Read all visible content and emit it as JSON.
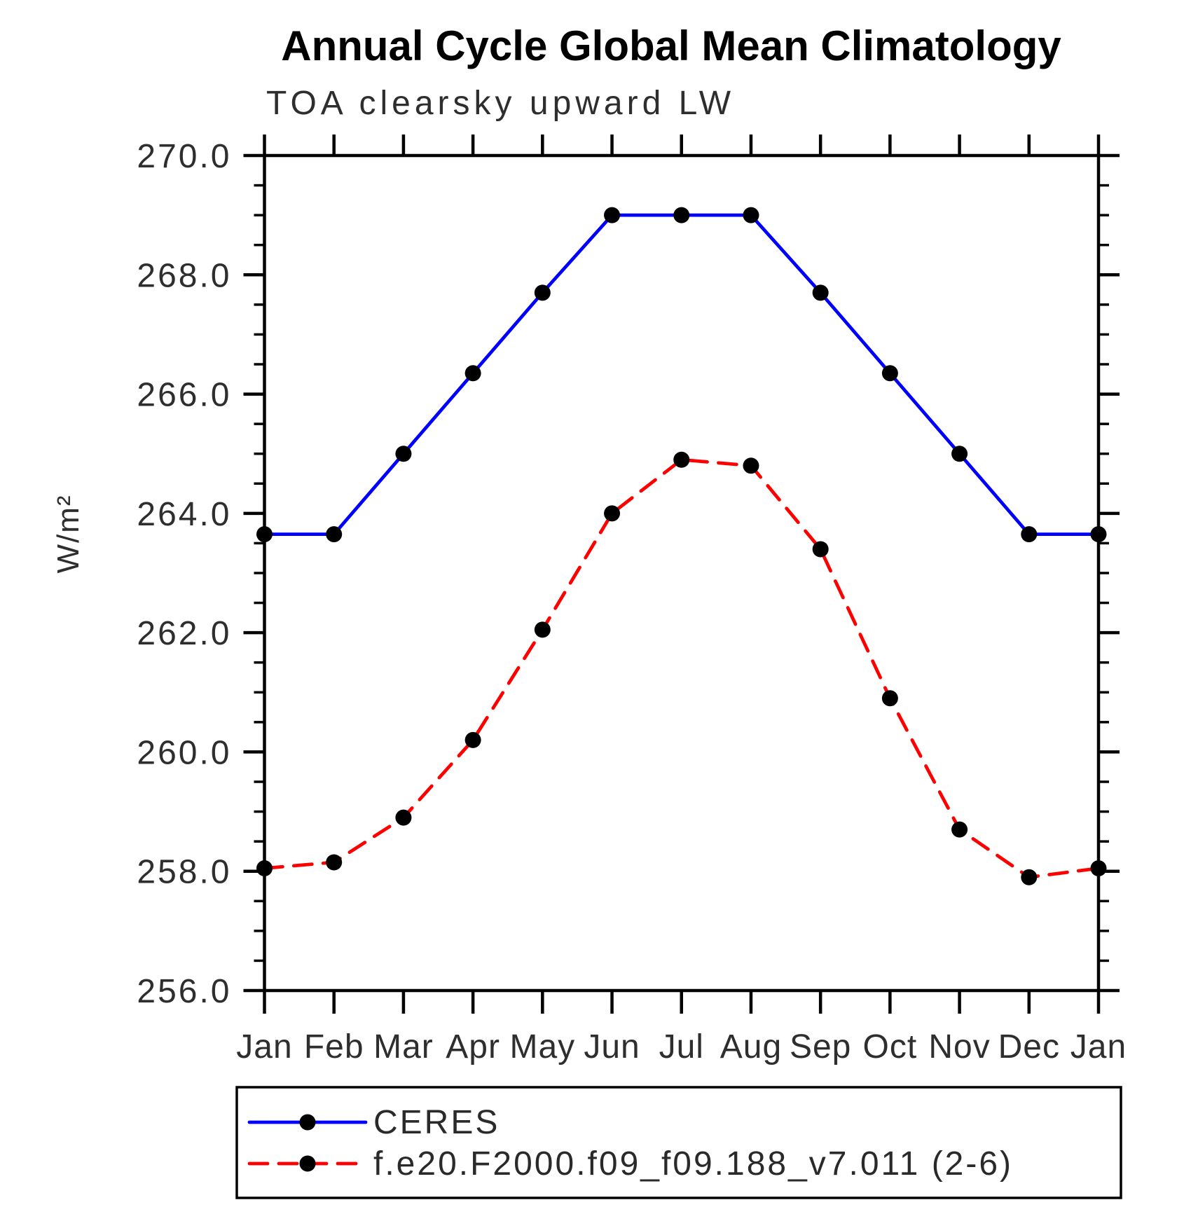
{
  "page": {
    "title": "Annual Cycle Global Mean Climatology",
    "subtitle": "TOA clearsky upward LW"
  },
  "colors": {
    "background": "#ffffff",
    "axis": "#000000",
    "title_text": "#000000",
    "label_text": "#2e2e2e",
    "ceres_line": "#0000ff",
    "model_line": "#ff0000",
    "marker": "#000000"
  },
  "chart_data": {
    "type": "line",
    "title": "Annual Cycle Global Mean Climatology",
    "subtitle": "TOA clearsky upward LW",
    "xlabel": "",
    "ylabel": "W/m²",
    "x_labels": [
      "Jan",
      "Feb",
      "Mar",
      "Apr",
      "May",
      "Jun",
      "Jul",
      "Aug",
      "Sep",
      "Oct",
      "Nov",
      "Dec",
      "Jan"
    ],
    "ylim": [
      256.0,
      270.0
    ],
    "y_major_step": 2.0,
    "y_minor_step": 0.5,
    "y_tick_labels": [
      "256.0",
      "258.0",
      "260.0",
      "262.0",
      "264.0",
      "266.0",
      "268.0",
      "270.0"
    ],
    "grid": false,
    "legend_position": "bottom-left",
    "series": [
      {
        "name": "CERES",
        "line_color": "#0000ff",
        "line_style": "solid",
        "marker": "filled-circle",
        "marker_color": "#000000",
        "values": [
          263.65,
          263.65,
          265.0,
          266.35,
          267.7,
          269.0,
          269.0,
          269.0,
          267.7,
          266.35,
          265.0,
          263.65,
          263.65
        ]
      },
      {
        "name": "f.e20.F2000.f09_f09.188_v7.011 (2-6)",
        "line_color": "#ff0000",
        "line_style": "dashed",
        "marker": "filled-circle",
        "marker_color": "#000000",
        "values": [
          258.05,
          258.15,
          258.9,
          260.2,
          262.05,
          264.0,
          264.9,
          264.8,
          263.4,
          260.9,
          258.7,
          257.9,
          258.05
        ]
      }
    ]
  }
}
